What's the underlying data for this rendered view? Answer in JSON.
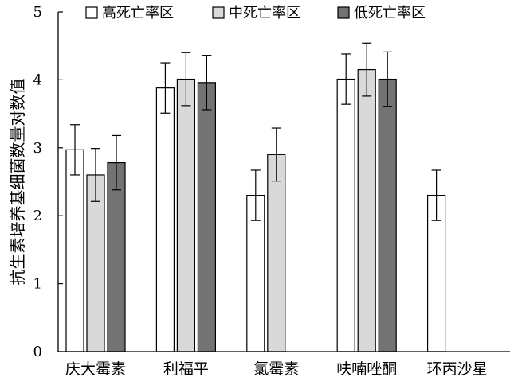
{
  "chart_data": {
    "type": "bar",
    "categories": [
      "庆大霉素",
      "利福平",
      "氯霉素",
      "呋喃唑酮",
      "环丙沙星"
    ],
    "ylabel": "抗生素培养基细菌数量对数值",
    "ylim": [
      0,
      5
    ],
    "yticks": [
      0,
      1,
      2,
      3,
      4,
      5
    ],
    "grid": false,
    "legend_position": "top",
    "error_bars": true,
    "series": [
      {
        "name": "高死亡率区",
        "color": "#ffffff",
        "values": [
          2.97,
          3.88,
          2.3,
          4.01,
          2.3
        ],
        "errors": [
          0.37,
          0.37,
          0.37,
          0.37,
          0.37
        ]
      },
      {
        "name": "中死亡率区",
        "color": "#d9d9d9",
        "values": [
          2.6,
          4.01,
          2.9,
          4.15,
          null
        ],
        "errors": [
          0.39,
          0.39,
          0.39,
          0.39,
          null
        ]
      },
      {
        "name": "低死亡率区",
        "color": "#737373",
        "values": [
          2.78,
          3.96,
          null,
          4.01,
          null
        ],
        "errors": [
          0.4,
          0.4,
          null,
          0.4,
          null
        ]
      }
    ]
  }
}
